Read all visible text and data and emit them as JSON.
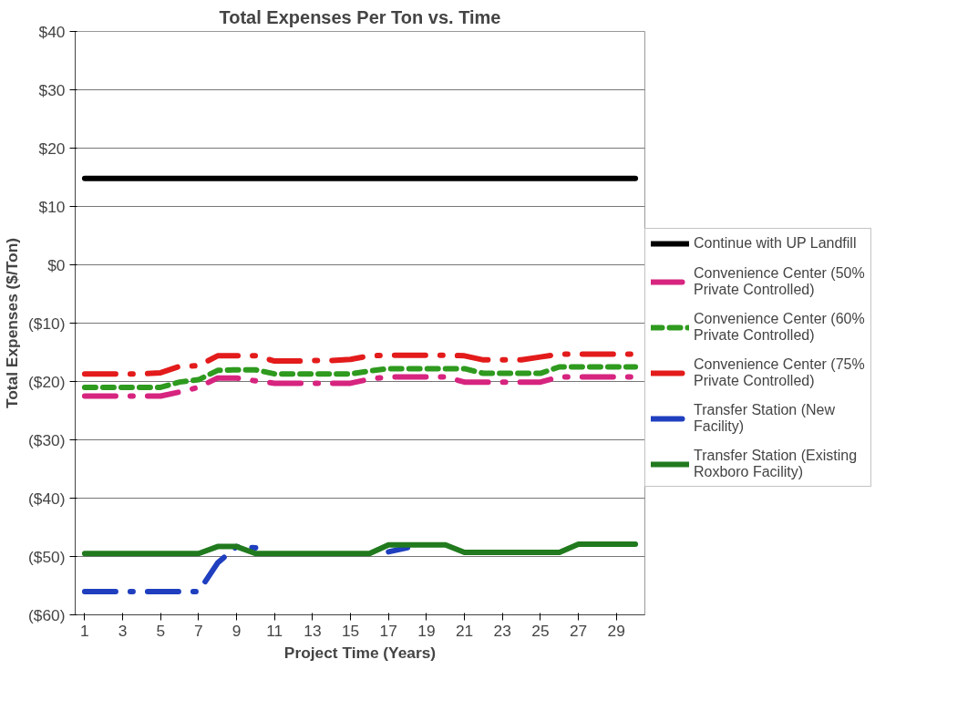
{
  "chart_data": {
    "type": "line",
    "title": "Total Expenses Per Ton vs. Time",
    "xlabel": "Project Time (Years)",
    "ylabel": "Total Expenses ($/Ton)",
    "x": [
      1,
      2,
      3,
      4,
      5,
      6,
      7,
      8,
      9,
      10,
      11,
      12,
      13,
      14,
      15,
      16,
      17,
      18,
      19,
      20,
      21,
      22,
      23,
      24,
      25,
      26,
      27,
      28,
      29,
      30
    ],
    "xlim": [
      0.5,
      30.5
    ],
    "xticks": [
      1,
      3,
      5,
      7,
      9,
      11,
      13,
      15,
      17,
      19,
      21,
      23,
      25,
      27,
      29
    ],
    "ylim": [
      -60,
      40
    ],
    "yticks": [
      {
        "value": -60,
        "label": "($60)"
      },
      {
        "value": -50,
        "label": "($50)"
      },
      {
        "value": -40,
        "label": "($40)"
      },
      {
        "value": -30,
        "label": "($30)"
      },
      {
        "value": -20,
        "label": "($20)"
      },
      {
        "value": -10,
        "label": "($10)"
      },
      {
        "value": 0,
        "label": "$0"
      },
      {
        "value": 10,
        "label": "$10"
      },
      {
        "value": 20,
        "label": "$20"
      },
      {
        "value": 30,
        "label": "$30"
      },
      {
        "value": 40,
        "label": "$40"
      }
    ],
    "grid": "y",
    "legend": "right",
    "marker": "none",
    "series": [
      {
        "name": "Continue with UP Landfill",
        "color": "#000000",
        "line_style": "solid",
        "values": [
          14.8,
          14.8,
          14.8,
          14.8,
          14.8,
          14.8,
          14.8,
          14.8,
          14.8,
          14.8,
          14.8,
          14.8,
          14.8,
          14.8,
          14.8,
          14.8,
          14.8,
          14.8,
          14.8,
          14.8,
          14.8,
          14.8,
          14.8,
          14.8,
          14.8,
          14.8,
          14.8,
          14.8,
          14.8,
          14.8
        ]
      },
      {
        "name": "Convenience Center (50% Private Controlled)",
        "color": "#d6247f",
        "line_style": "dotted",
        "values": [
          -22.5,
          -22.5,
          -22.5,
          -22.5,
          -22.5,
          -21.8,
          -21.0,
          -19.4,
          -19.4,
          -19.9,
          -20.3,
          -20.3,
          -20.3,
          -20.3,
          -20.3,
          -19.6,
          -19.2,
          -19.2,
          -19.2,
          -19.2,
          -20.1,
          -20.1,
          -20.1,
          -20.1,
          -20.1,
          -19.2,
          -19.2,
          -19.2,
          -19.2,
          -19.2
        ]
      },
      {
        "name": "Convenience Center (60% Private Controlled)",
        "color": "#2e9a1e",
        "line_style": "dashed",
        "values": [
          -21.0,
          -21.0,
          -21.0,
          -21.0,
          -21.0,
          -20.1,
          -19.7,
          -18.1,
          -18.0,
          -18.0,
          -18.7,
          -18.7,
          -18.7,
          -18.7,
          -18.7,
          -18.2,
          -17.8,
          -17.8,
          -17.8,
          -17.8,
          -17.8,
          -18.6,
          -18.6,
          -18.6,
          -18.6,
          -17.5,
          -17.5,
          -17.5,
          -17.5,
          -17.5
        ]
      },
      {
        "name": "Convenience Center (75% Private Controlled)",
        "color": "#e31b1b",
        "line_style": "dotted",
        "values": [
          -18.7,
          -18.7,
          -18.7,
          -18.7,
          -18.5,
          -17.4,
          -17.3,
          -15.6,
          -15.6,
          -15.6,
          -16.5,
          -16.5,
          -16.4,
          -16.4,
          -16.2,
          -15.6,
          -15.5,
          -15.5,
          -15.5,
          -15.5,
          -15.6,
          -16.3,
          -16.3,
          -16.3,
          -15.8,
          -15.3,
          -15.3,
          -15.3,
          -15.3,
          -15.3
        ]
      },
      {
        "name": "Transfer Station (New Facility)",
        "color": "#1f3fbf",
        "line_style": "dotted",
        "values": [
          -56,
          -56,
          -56,
          -56,
          -56,
          -56,
          -56,
          -51.1,
          -48.3,
          -48.5,
          null,
          null,
          null,
          null,
          null,
          null,
          -49.2,
          -48.5,
          null,
          null,
          null,
          null,
          null,
          null,
          null,
          null,
          null,
          null,
          null,
          null
        ]
      },
      {
        "name": "Transfer Station (Existing Roxboro Facility)",
        "color": "#217a1e",
        "line_style": "solid",
        "values": [
          -49.5,
          -49.5,
          -49.5,
          -49.5,
          -49.5,
          -49.5,
          -49.5,
          -48.3,
          -48.3,
          -49.5,
          -49.5,
          -49.5,
          -49.5,
          -49.5,
          -49.5,
          -49.5,
          -48,
          -48,
          -48,
          -48,
          -49.3,
          -49.3,
          -49.3,
          -49.3,
          -49.3,
          -49.3,
          -47.9,
          -47.9,
          -47.9,
          -47.9
        ]
      }
    ]
  }
}
